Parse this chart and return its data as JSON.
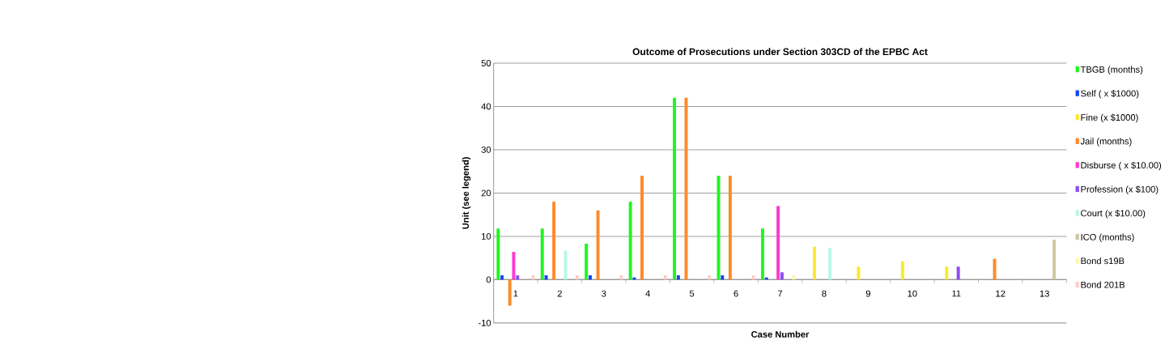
{
  "chart_data": {
    "type": "bar",
    "title": "Outcome of Prosecutions under Section 303CD of the EPBC Act",
    "xlabel": "Case Number",
    "ylabel": "Unit (see legend)",
    "categories": [
      "1",
      "2",
      "3",
      "4",
      "5",
      "6",
      "7",
      "8",
      "9",
      "10",
      "11",
      "12",
      "13"
    ],
    "series": [
      {
        "name": "TBGB (months)",
        "color": "#1ef71e",
        "values": [
          11.8,
          11.8,
          8.3,
          18,
          42,
          24,
          11.8,
          null,
          null,
          null,
          null,
          null,
          null
        ]
      },
      {
        "name": "Self ( x $1000)",
        "color": "#1444f5",
        "values": [
          1,
          1,
          1,
          0.5,
          1,
          1,
          0.5,
          null,
          null,
          null,
          null,
          null,
          null
        ]
      },
      {
        "name": "Fine (x $1000)",
        "color": "#fce92a",
        "values": [
          null,
          null,
          null,
          null,
          null,
          null,
          null,
          7.6,
          3,
          4.2,
          3,
          null,
          null
        ]
      },
      {
        "name": "Jail (months)",
        "color": "#fd8a2a",
        "values": [
          -6,
          18,
          16,
          24,
          42,
          24,
          null,
          null,
          null,
          null,
          null,
          4.8,
          null
        ]
      },
      {
        "name": "Disburse ( x $10.00)",
        "color": "#fd3ace",
        "values": [
          6.4,
          null,
          null,
          null,
          null,
          null,
          17,
          null,
          null,
          null,
          null,
          null,
          null
        ]
      },
      {
        "name": "Profession (x $100)",
        "color": "#8d4cf5",
        "values": [
          1,
          null,
          null,
          null,
          null,
          null,
          1.7,
          null,
          null,
          null,
          3,
          null,
          null
        ]
      },
      {
        "name": "Court (x $10.00)",
        "color": "#b7f8e8",
        "values": [
          null,
          6.7,
          null,
          null,
          null,
          null,
          null,
          7.3,
          null,
          null,
          null,
          null,
          null
        ]
      },
      {
        "name": "ICO (months)",
        "color": "#cdc7a2",
        "values": [
          null,
          null,
          null,
          null,
          null,
          null,
          null,
          null,
          null,
          null,
          null,
          null,
          9.2
        ]
      },
      {
        "name": "Bond s19B",
        "color": "#fff7b0",
        "values": [
          null,
          null,
          null,
          null,
          null,
          null,
          1,
          null,
          null,
          null,
          null,
          null,
          null
        ]
      },
      {
        "name": "Bond 201B",
        "color": "#fdcfcb",
        "values": [
          1,
          1,
          1,
          1,
          1,
          1,
          null,
          null,
          null,
          null,
          null,
          null,
          null
        ]
      }
    ],
    "ylim": [
      -10,
      50
    ],
    "yticks": [
      -10,
      0,
      10,
      20,
      30,
      40,
      50
    ],
    "grid": "y",
    "legend": "right"
  }
}
